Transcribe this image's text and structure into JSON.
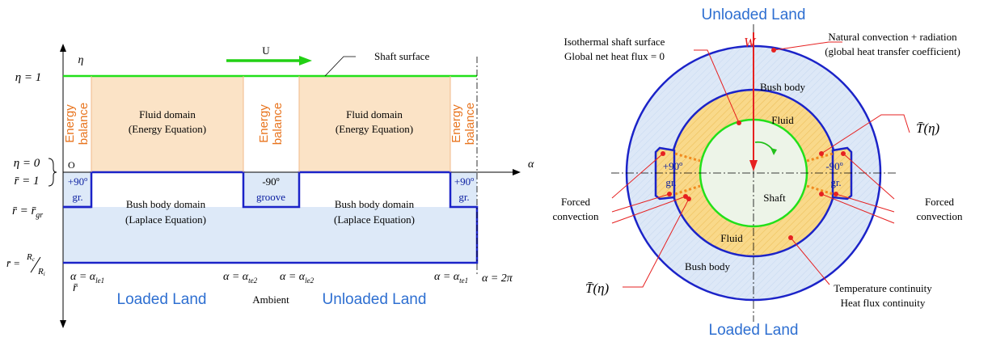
{
  "left": {
    "eta_axis": "η",
    "eta1": "η = 1",
    "eta0": "η = 0",
    "r1": "r̄ = 1",
    "rgr_prefix": "r̄ = r̄",
    "rgr_sub": "gr",
    "rR_prefix": "r̄ =",
    "rR_num": "R",
    "rR_num_sub": "c",
    "rR_den": "R",
    "rR_den_sub": "i",
    "r_axis": "r̄",
    "origin": "O",
    "alpha_axis": "α",
    "U": "U",
    "shaft_surface": "Shaft surface",
    "energy1": "Energy",
    "energy2": "balance",
    "fluid_domain": "Fluid domain",
    "energy_eq": "(Energy Equation)",
    "bush_domain": "Bush body domain",
    "laplace_eq": "(Laplace Equation)",
    "plus90": "+90º",
    "gr": "gr.",
    "minus90": "-90º",
    "groove": "groove",
    "alpha_eq": "α = α",
    "sub_le1": "le1",
    "sub_te2": "te2",
    "sub_le2": "le2",
    "sub_te1": "te1",
    "alpha_2pi": "α = 2π",
    "loaded_land": "Loaded Land",
    "ambient": "Ambient",
    "unloaded_land": "Unloaded Land"
  },
  "right": {
    "unloaded_land": "Unloaded Land",
    "loaded_land": "Loaded Land",
    "W": "W",
    "isothermal1": "Isothermal shaft surface",
    "isothermal2": "Global net heat flux = 0",
    "natural1": "Natural convection + radiation",
    "natural2": "(global heat transfer coefficient)",
    "bush_body": "Bush body",
    "fluid": "Fluid",
    "shaft": "Shaft",
    "T_eta": "T̄(η)",
    "plus90": "+90º",
    "minus90": "-90º",
    "gr": "gr.",
    "forced": "Forced",
    "convection": "convection",
    "temp_cont": "Temperature continuity",
    "flux_cont": "Heat flux continuity"
  }
}
